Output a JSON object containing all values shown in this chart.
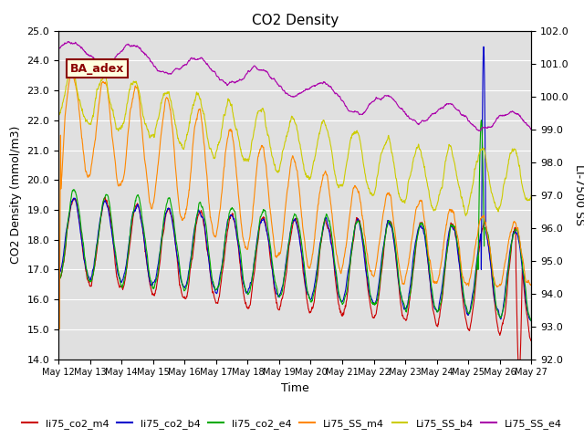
{
  "title": "CO2 Density",
  "xlabel": "Time",
  "ylabel_left": "CO2 Density (mmol/m3)",
  "ylabel_right": "LI-7500 SS",
  "ylim_left": [
    14.0,
    25.0
  ],
  "ylim_right": [
    92.0,
    102.0
  ],
  "x_tick_labels": [
    "May 12",
    "May 13",
    "May 14",
    "May 15",
    "May 16",
    "May 17",
    "May 18",
    "May 19",
    "May 20",
    "May 21",
    "May 22",
    "May 23",
    "May 24",
    "May 25",
    "May 26",
    "May 27"
  ],
  "annotation_text": "BA_adex",
  "background_color": "#e0e0e0",
  "series_colors": {
    "li75_co2_m4": "#cc0000",
    "li75_co2_b4": "#0000cc",
    "li75_co2_e4": "#00aa00",
    "Li75_SS_m4": "#ff8800",
    "Li75_SS_b4": "#cccc00",
    "Li75_SS_e4": "#aa00aa"
  }
}
